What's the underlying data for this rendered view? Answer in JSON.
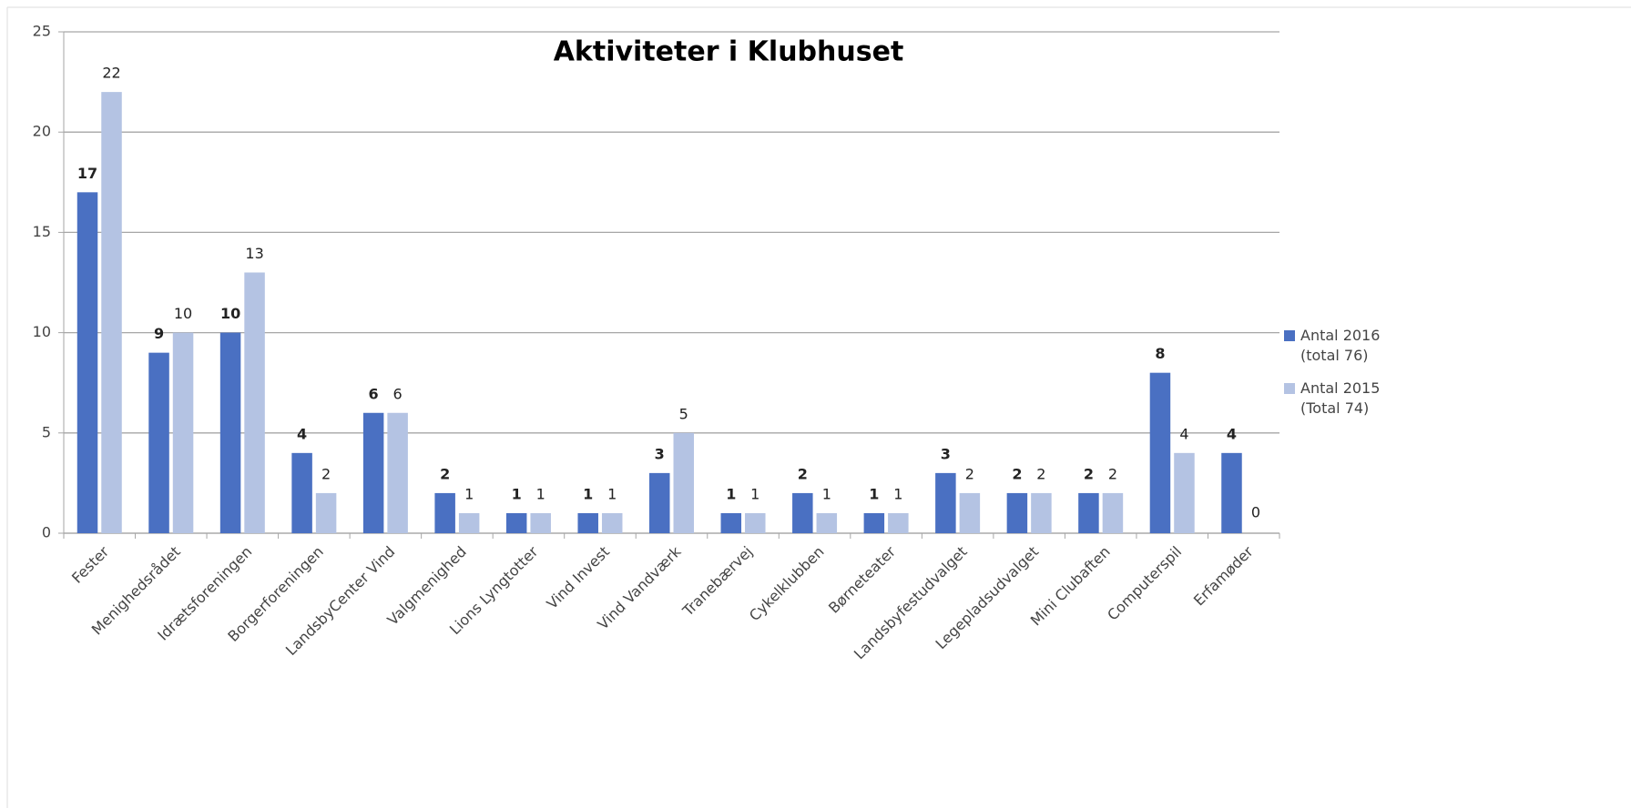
{
  "chart_data": {
    "type": "bar",
    "title": "Aktiviteter i Klubhuset",
    "categories": [
      "Fester",
      "Menighedsrådet",
      "Idrætsforeningen",
      "Borgerforeningen",
      "LandsbyCenter Vind",
      "Valgmenighed",
      "Lions Lyngtotter",
      "Vind Invest",
      "Vind Vandværk",
      "Tranebærvej",
      "Cykelklubben",
      "Børneteater",
      "Landsbyfestudvalget",
      "Legepladsudvalget",
      "Mini Clubaften",
      "Computerspil",
      "Erfamøder"
    ],
    "series": [
      {
        "name": "Antal 2016 (total 76)",
        "color": "#4a70c2",
        "label_weight": "bold",
        "values": [
          17,
          9,
          10,
          4,
          6,
          2,
          1,
          1,
          3,
          1,
          2,
          1,
          3,
          2,
          2,
          8,
          4
        ]
      },
      {
        "name": "Antal 2015 (Total 74)",
        "color": "#b4c3e3",
        "label_weight": "normal",
        "values": [
          22,
          10,
          13,
          2,
          6,
          1,
          1,
          1,
          5,
          1,
          1,
          1,
          2,
          2,
          2,
          4,
          0
        ]
      }
    ],
    "ylim": [
      0,
      25
    ],
    "yticks": [
      0,
      5,
      10,
      15,
      20,
      25
    ],
    "grid": true,
    "legend": "right",
    "data_labels": true
  }
}
